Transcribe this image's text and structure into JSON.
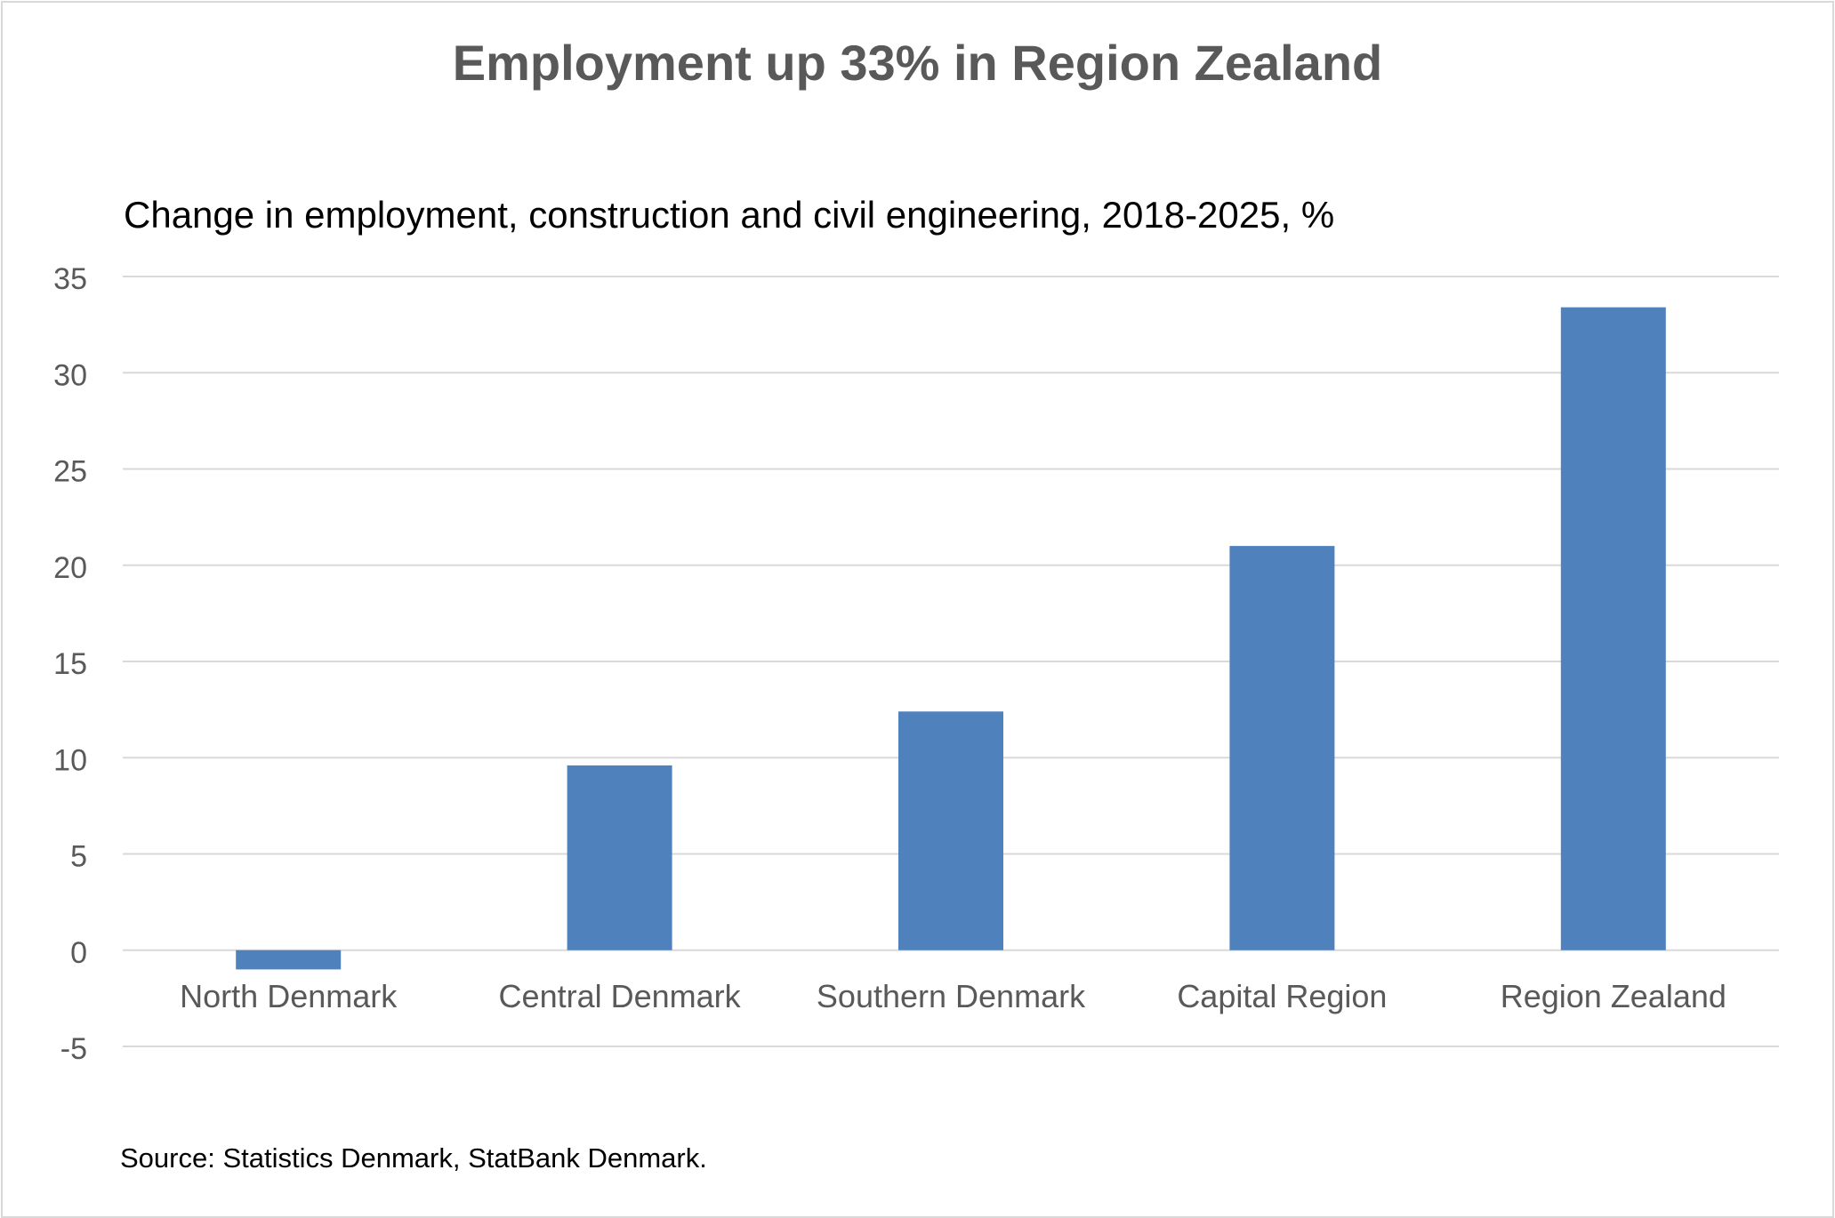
{
  "chart_data": {
    "type": "bar",
    "title": "Employment up 33% in Region Zealand",
    "subtitle": "Change in employment, construction and civil engineering, 2018-2025, %",
    "source": "Source: Statistics Denmark, StatBank Denmark.",
    "categories": [
      "North Denmark",
      "Central Denmark",
      "Southern Denmark",
      "Capital Region",
      "Region Zealand"
    ],
    "values": [
      -1.0,
      9.6,
      12.4,
      21.0,
      33.4
    ],
    "ylim": [
      -5,
      35
    ],
    "yticks": [
      35,
      30,
      25,
      20,
      15,
      10,
      5,
      0,
      -5
    ],
    "grid": true,
    "legend": "none",
    "bar_color": "#4f81bd",
    "grid_color": "#d9d9d9",
    "label_color": "#595959"
  }
}
